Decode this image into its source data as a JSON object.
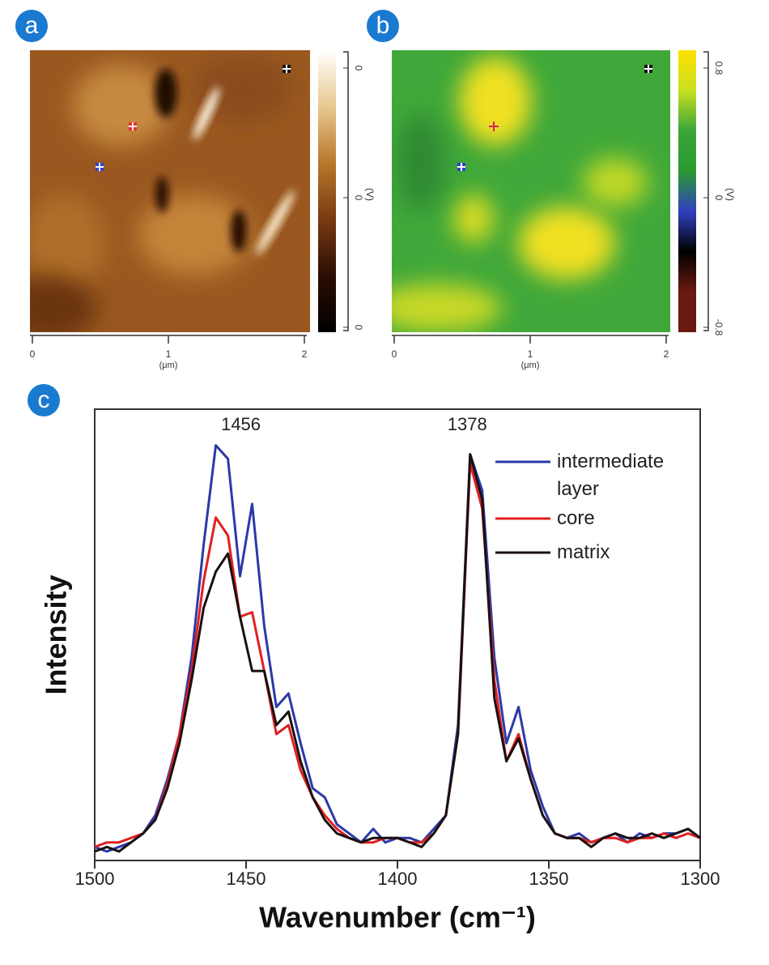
{
  "chart_data": [
    {
      "type": "heatmap",
      "label": "a",
      "xlim": [
        0,
        2
      ],
      "xticks": [
        0,
        1,
        2
      ],
      "xlabel": "(μm)",
      "colorbar_label": "(V)",
      "colorbar_ticks": [
        "0",
        "0",
        "0"
      ],
      "palette": [
        "#ffffff",
        "#e8c890",
        "#b8782a",
        "#7a3a12",
        "#2a0e04",
        "#000000"
      ]
    },
    {
      "type": "heatmap",
      "label": "b",
      "xlim": [
        0,
        2
      ],
      "xticks": [
        0,
        1,
        2
      ],
      "xlabel": "(μm)",
      "colorbar_label": "(V)",
      "colorbar_lim": [
        -0.8,
        0.8
      ],
      "colorbar_ticks": [
        0.8,
        0,
        -0.8
      ],
      "palette": [
        "#ffe000",
        "#c8e020",
        "#3aa63a",
        "#2a9a30",
        "#3040c0",
        "#000000",
        "#6a1a10",
        "#6a1a10"
      ]
    },
    {
      "type": "line",
      "label": "c",
      "xlabel": "Wavenumber (cm⁻¹)",
      "ylabel": "Intensity",
      "xlim": [
        1500,
        1300
      ],
      "xticks": [
        1500,
        1450,
        1400,
        1350,
        1300
      ],
      "ylim": [
        0,
        100
      ],
      "annotations": [
        1456,
        1378
      ],
      "x": [
        1500,
        1496,
        1492,
        1488,
        1484,
        1480,
        1476,
        1472,
        1468,
        1464,
        1460,
        1456,
        1452,
        1448,
        1444,
        1440,
        1436,
        1432,
        1428,
        1424,
        1420,
        1416,
        1412,
        1408,
        1404,
        1400,
        1396,
        1392,
        1388,
        1384,
        1380,
        1376,
        1372,
        1368,
        1364,
        1360,
        1356,
        1352,
        1348,
        1344,
        1340,
        1336,
        1332,
        1328,
        1324,
        1320,
        1316,
        1312,
        1308,
        1304,
        1300
      ],
      "series": [
        {
          "name": "intermediate layer",
          "color": "#2b3aa8",
          "values": [
            3,
            2,
            3,
            4,
            6,
            10,
            18,
            28,
            45,
            70,
            92,
            89,
            63,
            79,
            52,
            34,
            37,
            26,
            16,
            14,
            8,
            6,
            4,
            7,
            4,
            5,
            5,
            4,
            7,
            10,
            30,
            90,
            82,
            45,
            26,
            34,
            20,
            12,
            6,
            5,
            6,
            4,
            5,
            6,
            4,
            6,
            5,
            6,
            6,
            7,
            5
          ]
        },
        {
          "name": "core",
          "color": "#e02020",
          "values": [
            3,
            4,
            4,
            5,
            6,
            9,
            17,
            28,
            42,
            62,
            76,
            72,
            54,
            55,
            42,
            28,
            30,
            20,
            14,
            10,
            7,
            5,
            4,
            4,
            5,
            5,
            4,
            4,
            6,
            10,
            28,
            88,
            78,
            40,
            22,
            28,
            18,
            10,
            6,
            5,
            5,
            4,
            5,
            5,
            4,
            5,
            5,
            6,
            5,
            6,
            5
          ]
        },
        {
          "name": "matrix",
          "color": "#1a1010",
          "values": [
            2,
            3,
            2,
            4,
            6,
            9,
            16,
            26,
            40,
            56,
            64,
            68,
            54,
            42,
            42,
            30,
            33,
            22,
            14,
            9,
            6,
            5,
            4,
            5,
            5,
            5,
            4,
            3,
            6,
            10,
            28,
            90,
            80,
            36,
            22,
            27,
            18,
            10,
            6,
            5,
            5,
            3,
            5,
            6,
            5,
            5,
            6,
            5,
            6,
            7,
            5
          ]
        }
      ]
    }
  ]
}
